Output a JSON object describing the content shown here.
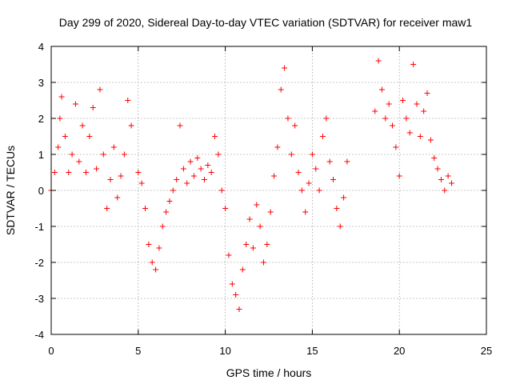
{
  "chart_data": {
    "type": "scatter",
    "title": "Day 299 of 2020, Sidereal Day-to-day VTEC variation (SDTVAR) for receiver maw1",
    "xlabel": "GPS time / hours",
    "ylabel": "SDTVAR / TECUs",
    "xlim": [
      0,
      25
    ],
    "ylim": [
      -4,
      4
    ],
    "xticks": [
      "0",
      "5",
      "10",
      "15",
      "20",
      "25"
    ],
    "yticks": [
      "-4",
      "-3",
      "-2",
      "-1",
      "0",
      "1",
      "2",
      "3",
      "4"
    ],
    "grid": true,
    "marker": "+",
    "color": "#ff0000",
    "series": [
      {
        "name": "maw1",
        "x": [
          0.0,
          0.2,
          0.4,
          0.5,
          0.6,
          0.8,
          1.0,
          1.2,
          1.4,
          1.6,
          1.8,
          2.0,
          2.2,
          2.4,
          2.6,
          2.8,
          3.0,
          3.2,
          3.4,
          3.6,
          3.8,
          4.0,
          4.2,
          4.4,
          4.6,
          5.0,
          5.2,
          5.4,
          5.6,
          5.8,
          6.0,
          6.2,
          6.4,
          6.6,
          6.8,
          7.0,
          7.2,
          7.4,
          7.6,
          7.8,
          8.0,
          8.2,
          8.4,
          8.6,
          8.8,
          9.0,
          9.2,
          9.4,
          9.6,
          9.8,
          10.0,
          10.2,
          10.4,
          10.6,
          10.8,
          11.0,
          11.2,
          11.4,
          11.6,
          11.8,
          12.0,
          12.2,
          12.4,
          12.6,
          12.8,
          13.0,
          13.2,
          13.4,
          13.6,
          13.8,
          14.0,
          14.2,
          14.4,
          14.6,
          14.8,
          15.0,
          15.2,
          15.4,
          15.6,
          15.8,
          16.0,
          16.2,
          16.4,
          16.6,
          16.8,
          17.0,
          18.6,
          18.8,
          19.0,
          19.2,
          19.4,
          19.6,
          19.8,
          20.0,
          20.2,
          20.4,
          20.6,
          20.8,
          21.0,
          21.2,
          21.4,
          21.6,
          21.8,
          22.0,
          22.2,
          22.4,
          22.6,
          22.8,
          23.0
        ],
        "y": [
          0.0,
          0.5,
          1.2,
          2.0,
          2.6,
          1.5,
          0.5,
          1.0,
          2.4,
          0.8,
          1.8,
          0.5,
          1.5,
          2.3,
          0.6,
          2.8,
          1.0,
          -0.5,
          0.3,
          1.2,
          -0.2,
          0.4,
          1.0,
          2.5,
          1.8,
          0.5,
          0.2,
          -0.5,
          -1.5,
          -2.0,
          -2.2,
          -1.6,
          -1.0,
          -0.6,
          -0.3,
          0.0,
          0.3,
          1.8,
          0.6,
          0.2,
          0.8,
          0.4,
          0.9,
          0.6,
          0.3,
          0.7,
          0.5,
          1.5,
          1.0,
          0.0,
          -0.5,
          -1.8,
          -2.6,
          -2.9,
          -3.3,
          -2.2,
          -1.5,
          -0.8,
          -1.6,
          -0.4,
          -1.0,
          -2.0,
          -1.5,
          -0.6,
          0.4,
          1.2,
          2.8,
          3.4,
          2.0,
          1.0,
          1.8,
          0.5,
          0.0,
          -0.6,
          0.2,
          1.0,
          0.6,
          0.0,
          1.5,
          2.0,
          0.8,
          0.3,
          -0.5,
          -1.0,
          -0.2,
          0.8,
          2.2,
          3.6,
          2.8,
          2.0,
          2.4,
          1.8,
          1.2,
          0.4,
          2.5,
          2.0,
          1.6,
          3.5,
          2.4,
          1.5,
          2.2,
          2.7,
          1.4,
          0.9,
          0.6,
          0.3,
          0.0,
          0.4,
          0.2
        ]
      }
    ]
  }
}
